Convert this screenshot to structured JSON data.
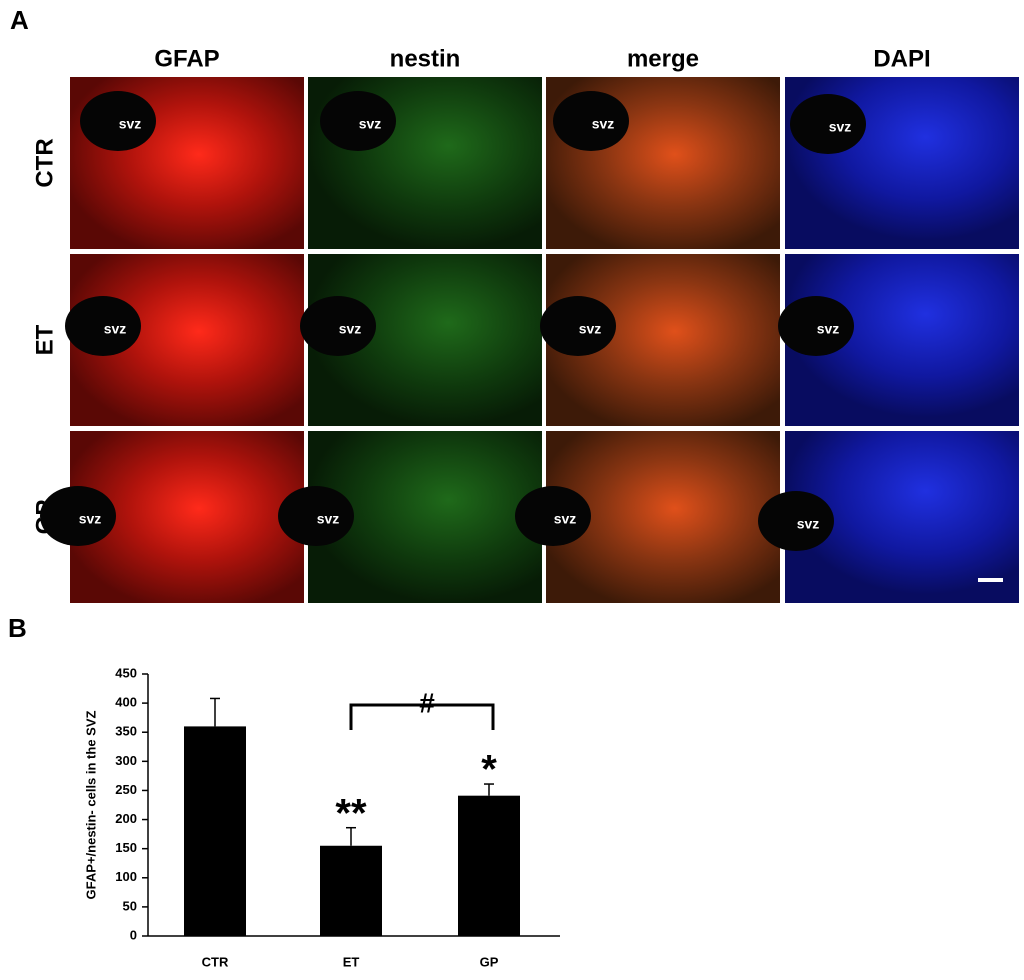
{
  "panel_a": {
    "label": "A",
    "columns": [
      "GFAP",
      "nestin",
      "merge",
      "DAPI"
    ],
    "rows": [
      "CTR",
      "ET",
      "GP"
    ],
    "region_labels": [
      [
        "svz",
        "svz",
        "svz",
        "svz"
      ],
      [
        "svz",
        "svz",
        "svz",
        "svz"
      ],
      [
        "svz",
        "svz",
        "svz",
        "svz"
      ]
    ]
  },
  "panel_b": {
    "label": "B"
  },
  "chart_data": {
    "type": "bar",
    "y_label": "GFAP+/nestin- cells in the SVZ",
    "categories": [
      "CTR",
      "ET",
      "GP"
    ],
    "values": [
      360,
      155,
      241
    ],
    "errors": [
      48,
      31,
      20
    ],
    "color": "#000000",
    "ylim": [
      0,
      450
    ],
    "yticks": [
      0,
      50,
      100,
      150,
      200,
      250,
      300,
      350,
      400,
      450
    ],
    "significance": [
      null,
      "**",
      "*"
    ],
    "comparison_label": "#"
  }
}
